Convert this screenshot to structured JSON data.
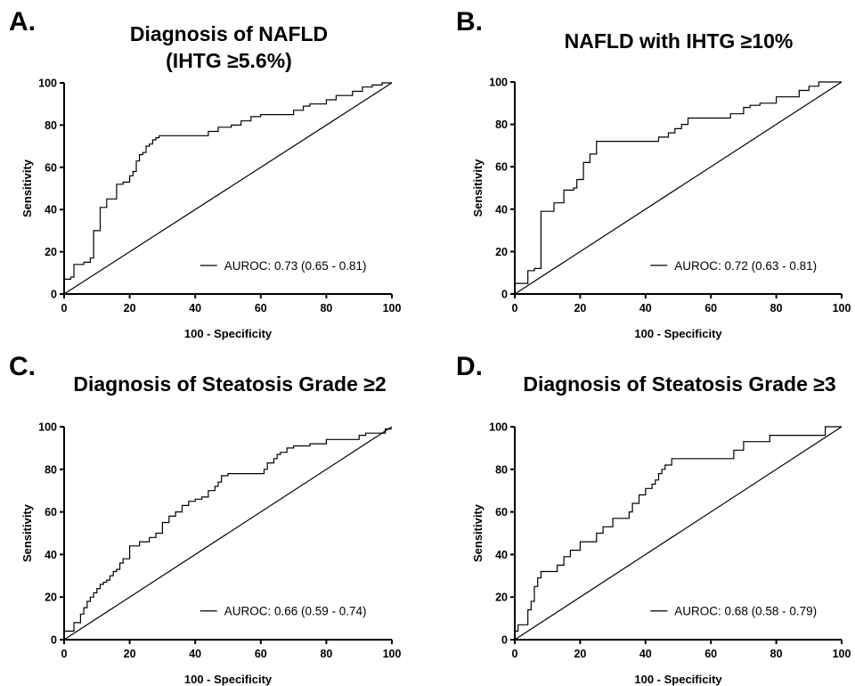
{
  "chart_data": [
    {
      "type": "line",
      "panel_letter": "A.",
      "title": "Diagnosis of NAFLD",
      "subtitle": "(IHTG ≥5.6%)",
      "xlabel": "100 - Specificity",
      "ylabel": "Sensitivity",
      "xlim": [
        0,
        100
      ],
      "ylim": [
        0,
        100
      ],
      "xticks": [
        0,
        20,
        40,
        60,
        80,
        100
      ],
      "yticks": [
        0,
        20,
        40,
        60,
        80,
        100
      ],
      "legend_position": "bottom-right",
      "series": [
        {
          "name": "AUROC: 0.73 (0.65 - 0.81)",
          "x": [
            0,
            2,
            2,
            3,
            3,
            6,
            6,
            8,
            8,
            9,
            9,
            11,
            11,
            13,
            13,
            16,
            16,
            18,
            18,
            20,
            20,
            21,
            21,
            22,
            22,
            23,
            23,
            24,
            24,
            25,
            25,
            26,
            26,
            27,
            27,
            28,
            28,
            29,
            29,
            30,
            30,
            44,
            44,
            47,
            47,
            51,
            51,
            54,
            54,
            57,
            57,
            60,
            60,
            62,
            62,
            70,
            70,
            73,
            73,
            75,
            75,
            80,
            80,
            83,
            83,
            88,
            88,
            91,
            91,
            94,
            94,
            97,
            97,
            100
          ],
          "y": [
            7,
            7,
            8,
            8,
            14,
            14,
            15,
            15,
            17,
            17,
            30,
            30,
            41,
            41,
            45,
            45,
            52,
            52,
            53,
            53,
            56,
            56,
            58,
            58,
            63,
            63,
            66,
            66,
            67,
            67,
            70,
            70,
            71,
            71,
            73,
            73,
            74,
            74,
            75,
            75,
            75,
            75,
            77,
            77,
            79,
            79,
            80,
            80,
            82,
            82,
            84,
            84,
            85,
            85,
            85,
            85,
            87,
            87,
            89,
            89,
            90,
            90,
            92,
            92,
            94,
            94,
            96,
            96,
            98,
            98,
            99,
            99,
            100,
            100
          ]
        },
        {
          "name": "",
          "x": [
            0,
            100
          ],
          "y": [
            0,
            100
          ]
        }
      ]
    },
    {
      "type": "line",
      "panel_letter": "B.",
      "title": "NAFLD with IHTG ≥10%",
      "subtitle": "",
      "xlabel": "100 - Specificity",
      "ylabel": "Sensitivity",
      "xlim": [
        0,
        100
      ],
      "ylim": [
        0,
        100
      ],
      "xticks": [
        0,
        20,
        40,
        60,
        80,
        100
      ],
      "yticks": [
        0,
        20,
        40,
        60,
        80,
        100
      ],
      "legend_position": "bottom-right",
      "series": [
        {
          "name": "AUROC: 0.72 (0.63 - 0.81)",
          "x": [
            0,
            4,
            4,
            6,
            6,
            8,
            8,
            12,
            12,
            15,
            15,
            18,
            18,
            19,
            19,
            21,
            21,
            23,
            23,
            25,
            25,
            44,
            44,
            47,
            47,
            49,
            49,
            51,
            51,
            53,
            53,
            66,
            66,
            70,
            70,
            72,
            72,
            75,
            75,
            80,
            80,
            87,
            87,
            90,
            90,
            93,
            93,
            100
          ],
          "y": [
            5,
            5,
            11,
            11,
            12,
            12,
            39,
            39,
            43,
            43,
            49,
            49,
            50,
            50,
            54,
            54,
            62,
            62,
            66,
            66,
            72,
            72,
            74,
            74,
            76,
            76,
            78,
            78,
            80,
            80,
            83,
            83,
            85,
            85,
            88,
            88,
            89,
            89,
            90,
            90,
            93,
            93,
            96,
            96,
            98,
            98,
            100,
            100
          ]
        },
        {
          "name": "",
          "x": [
            0,
            100
          ],
          "y": [
            0,
            100
          ]
        }
      ]
    },
    {
      "type": "line",
      "panel_letter": "C.",
      "title": "Diagnosis of Steatosis Grade ≥2",
      "subtitle": "",
      "xlabel": "100 - Specificity",
      "ylabel": "Sensitivity",
      "xlim": [
        0,
        100
      ],
      "ylim": [
        0,
        100
      ],
      "xticks": [
        0,
        20,
        40,
        60,
        80,
        100
      ],
      "yticks": [
        0,
        20,
        40,
        60,
        80,
        100
      ],
      "legend_position": "bottom-right",
      "series": [
        {
          "name": "AUROC: 0.66 (0.59 - 0.74)",
          "x": [
            0,
            3,
            3,
            5,
            5,
            6,
            6,
            7,
            7,
            8,
            8,
            9,
            9,
            10,
            10,
            11,
            11,
            12,
            12,
            13,
            13,
            14,
            14,
            15,
            15,
            16,
            16,
            17,
            17,
            18,
            18,
            20,
            20,
            23,
            23,
            26,
            26,
            28,
            28,
            30,
            30,
            32,
            32,
            34,
            34,
            36,
            36,
            38,
            38,
            40,
            40,
            42,
            42,
            44,
            44,
            46,
            46,
            47,
            47,
            48,
            48,
            50,
            50,
            61,
            61,
            62,
            62,
            64,
            64,
            65,
            65,
            66,
            66,
            68,
            68,
            70,
            70,
            75,
            75,
            80,
            80,
            90,
            90,
            92,
            92,
            98,
            98,
            100
          ],
          "y": [
            4,
            4,
            8,
            8,
            12,
            12,
            15,
            15,
            18,
            18,
            20,
            20,
            22,
            22,
            24,
            24,
            26,
            26,
            27,
            27,
            28,
            28,
            30,
            30,
            32,
            32,
            33,
            33,
            36,
            36,
            38,
            38,
            44,
            44,
            46,
            46,
            48,
            48,
            50,
            50,
            55,
            55,
            58,
            58,
            60,
            60,
            63,
            63,
            65,
            65,
            66,
            66,
            67,
            67,
            70,
            70,
            72,
            72,
            74,
            74,
            77,
            77,
            78,
            78,
            80,
            80,
            83,
            83,
            85,
            85,
            87,
            87,
            88,
            88,
            90,
            90,
            91,
            91,
            92,
            92,
            94,
            94,
            96,
            96,
            97,
            97,
            99,
            99
          ]
        },
        {
          "name": "",
          "x": [
            0,
            100
          ],
          "y": [
            0,
            100
          ]
        }
      ]
    },
    {
      "type": "line",
      "panel_letter": "D.",
      "title": "Diagnosis of Steatosis Grade ≥3",
      "subtitle": "",
      "xlabel": "100 - Specificity",
      "ylabel": "Sensitivity",
      "xlim": [
        0,
        100
      ],
      "ylim": [
        0,
        100
      ],
      "xticks": [
        0,
        20,
        40,
        60,
        80,
        100
      ],
      "yticks": [
        0,
        20,
        40,
        60,
        80,
        100
      ],
      "legend_position": "bottom-right",
      "series": [
        {
          "name": "AUROC: 0.68 (0.58 - 0.79)",
          "x": [
            0,
            0,
            1,
            1,
            4,
            4,
            5,
            5,
            6,
            6,
            7,
            7,
            8,
            8,
            13,
            13,
            15,
            15,
            17,
            17,
            20,
            20,
            25,
            25,
            27,
            27,
            30,
            30,
            35,
            35,
            36,
            36,
            38,
            38,
            40,
            40,
            42,
            42,
            43,
            43,
            44,
            44,
            45,
            45,
            46,
            46,
            48,
            48,
            67,
            67,
            70,
            70,
            78,
            78,
            95,
            95,
            100
          ],
          "y": [
            0,
            4,
            4,
            7,
            7,
            14,
            14,
            18,
            18,
            25,
            25,
            29,
            29,
            32,
            32,
            35,
            35,
            39,
            39,
            42,
            42,
            46,
            46,
            50,
            50,
            53,
            53,
            57,
            57,
            60,
            60,
            64,
            64,
            68,
            68,
            71,
            71,
            73,
            73,
            75,
            75,
            78,
            78,
            80,
            80,
            82,
            82,
            85,
            85,
            89,
            89,
            93,
            93,
            96,
            96,
            100,
            100
          ]
        },
        {
          "name": "",
          "x": [
            0,
            100
          ],
          "y": [
            0,
            100
          ]
        }
      ]
    }
  ]
}
